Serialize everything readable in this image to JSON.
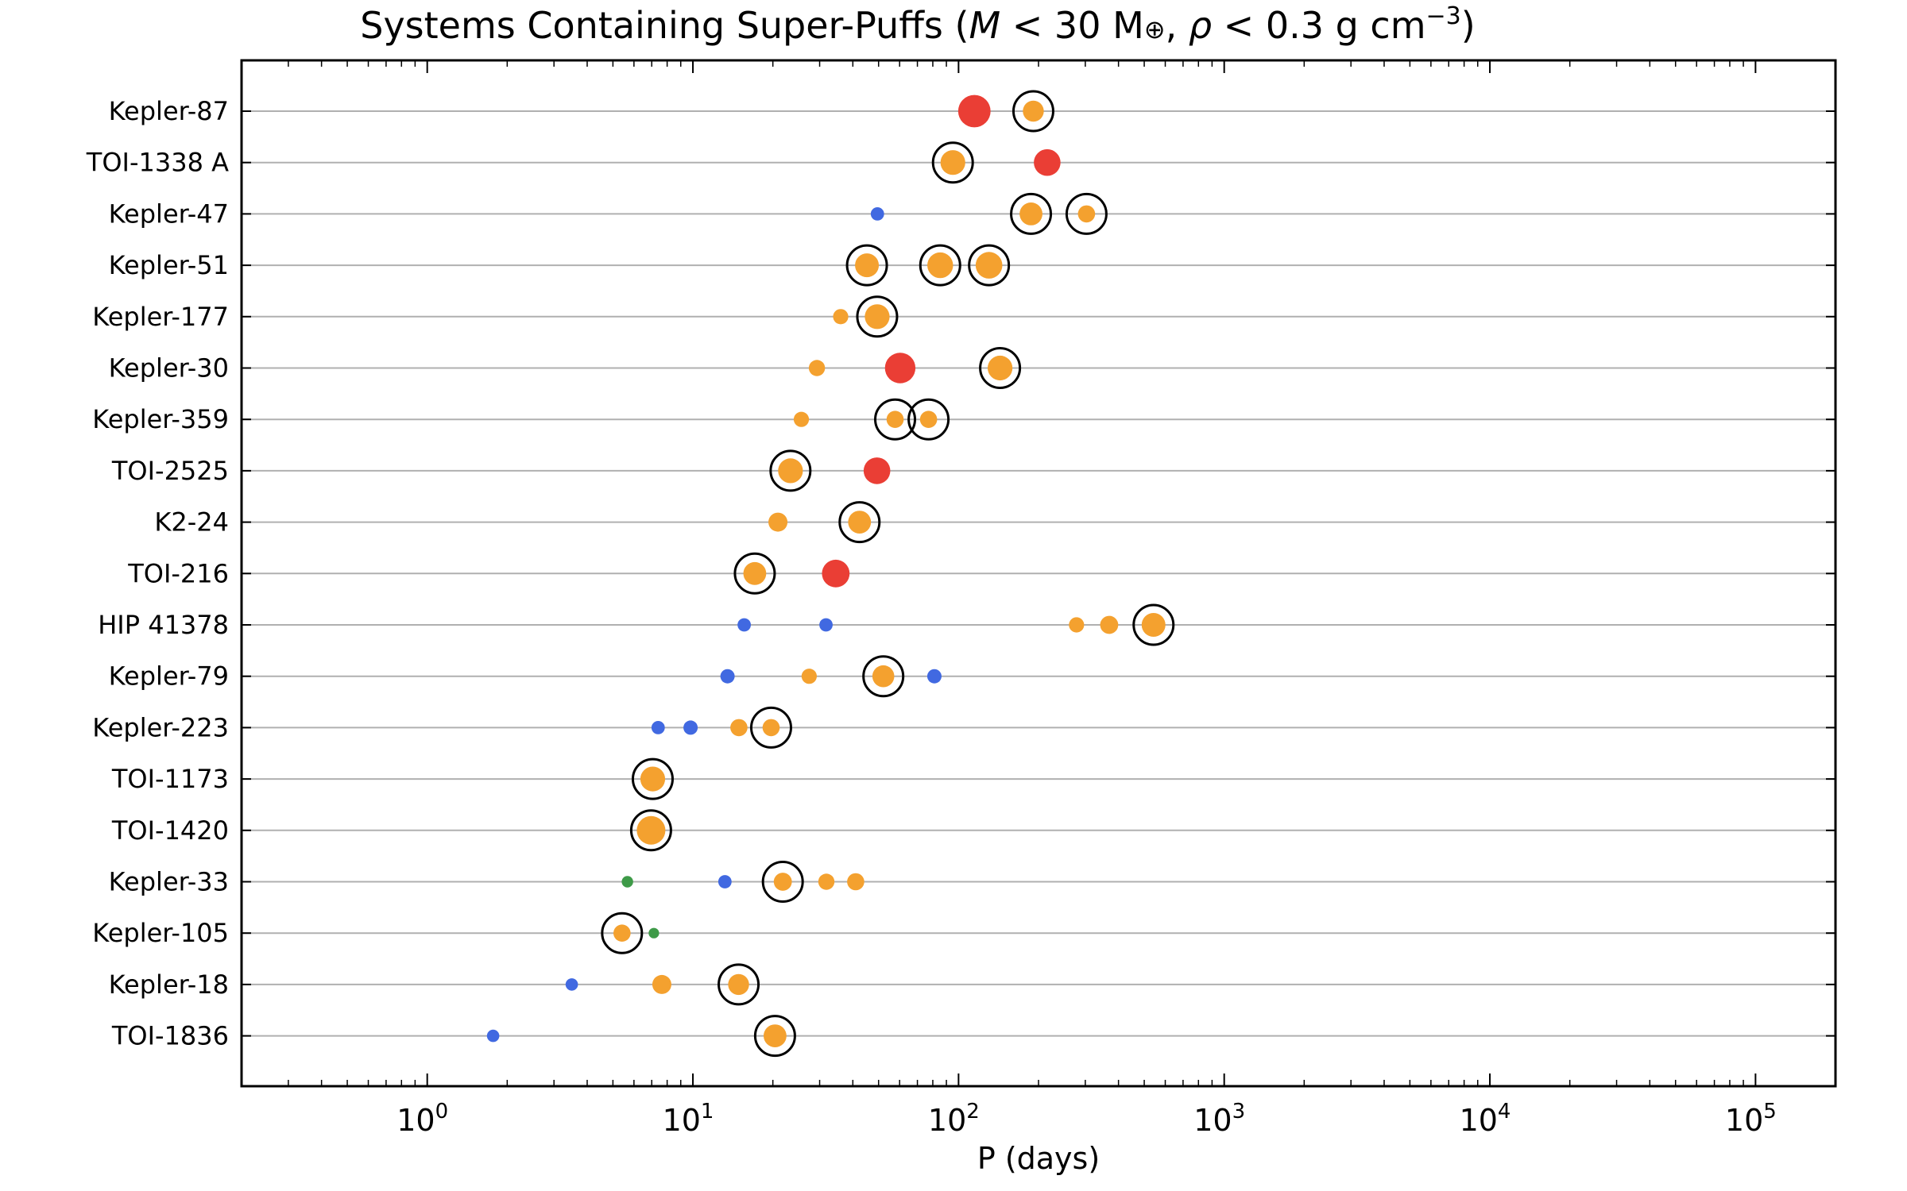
{
  "chart_data": {
    "type": "scatter",
    "title": {
      "prefix": "Systems Containing Super-Puffs (",
      "m_sym": "M",
      "m_cond": " < 30 M",
      "earth_sym": "⊕",
      "sep": ", ",
      "rho_sym": "ρ",
      "rho_cond": " < 0.3 g cm",
      "rho_exp": "−3",
      "suffix": ")"
    },
    "xlabel": "P (days)",
    "ylabel": "",
    "xscale": "log",
    "xlim": [
      0.2,
      200000
    ],
    "xticks": [
      {
        "value": 1,
        "base": "10",
        "exp": "0"
      },
      {
        "value": 10,
        "base": "10",
        "exp": "1"
      },
      {
        "value": 100,
        "base": "10",
        "exp": "2"
      },
      {
        "value": 1000,
        "base": "10",
        "exp": "3"
      },
      {
        "value": 10000,
        "base": "10",
        "exp": "4"
      },
      {
        "value": 100000,
        "base": "10",
        "exp": "5"
      }
    ],
    "grid": "horizontal",
    "colors": {
      "orange": "#f4a12f",
      "red": "#ea3e35",
      "blue": "#4169e1",
      "green": "#3e9a48",
      "ring": "#000000",
      "gridline": "#b0b0b0"
    },
    "systems": [
      {
        "name": "Kepler-87",
        "planets": [
          {
            "P": 114.7,
            "color": "red",
            "size": 3.4
          },
          {
            "P": 191.2,
            "color": "orange",
            "size": 2.2,
            "superpuff": true
          }
        ]
      },
      {
        "name": "TOI-1338 A",
        "planets": [
          {
            "P": 95.2,
            "color": "orange",
            "size": 2.6,
            "superpuff": true
          },
          {
            "P": 215.6,
            "color": "red",
            "size": 2.8
          }
        ]
      },
      {
        "name": "Kepler-47",
        "planets": [
          {
            "P": 49.5,
            "color": "blue",
            "size": 1.4
          },
          {
            "P": 187.4,
            "color": "orange",
            "size": 2.4,
            "superpuff": true
          },
          {
            "P": 303.2,
            "color": "orange",
            "size": 1.8,
            "superpuff": true
          }
        ]
      },
      {
        "name": "Kepler-51",
        "planets": [
          {
            "P": 45.2,
            "color": "orange",
            "size": 2.5,
            "superpuff": true
          },
          {
            "P": 85.3,
            "color": "orange",
            "size": 2.7,
            "superpuff": true
          },
          {
            "P": 130.2,
            "color": "orange",
            "size": 2.8,
            "superpuff": true
          }
        ]
      },
      {
        "name": "Kepler-177",
        "planets": [
          {
            "P": 36.0,
            "color": "orange",
            "size": 1.6
          },
          {
            "P": 49.4,
            "color": "orange",
            "size": 2.6,
            "superpuff": true
          }
        ]
      },
      {
        "name": "Kepler-30",
        "planets": [
          {
            "P": 29.3,
            "color": "orange",
            "size": 1.7
          },
          {
            "P": 60.3,
            "color": "red",
            "size": 3.2
          },
          {
            "P": 143.3,
            "color": "orange",
            "size": 2.6,
            "superpuff": true
          }
        ]
      },
      {
        "name": "Kepler-359",
        "planets": [
          {
            "P": 25.6,
            "color": "orange",
            "size": 1.6
          },
          {
            "P": 57.7,
            "color": "orange",
            "size": 1.8,
            "superpuff": true
          },
          {
            "P": 77.1,
            "color": "orange",
            "size": 1.8,
            "superpuff": true
          }
        ]
      },
      {
        "name": "TOI-2525",
        "planets": [
          {
            "P": 23.3,
            "color": "orange",
            "size": 2.6,
            "superpuff": true
          },
          {
            "P": 49.3,
            "color": "red",
            "size": 2.8
          }
        ]
      },
      {
        "name": "K2-24",
        "planets": [
          {
            "P": 20.9,
            "color": "orange",
            "size": 2.0
          },
          {
            "P": 42.4,
            "color": "orange",
            "size": 2.4,
            "superpuff": true
          }
        ]
      },
      {
        "name": "TOI-216",
        "planets": [
          {
            "P": 17.1,
            "color": "orange",
            "size": 2.4,
            "superpuff": true
          },
          {
            "P": 34.5,
            "color": "red",
            "size": 2.9
          }
        ]
      },
      {
        "name": "HIP 41378",
        "planets": [
          {
            "P": 15.6,
            "color": "blue",
            "size": 1.4
          },
          {
            "P": 31.7,
            "color": "blue",
            "size": 1.4
          },
          {
            "P": 278,
            "color": "orange",
            "size": 1.6
          },
          {
            "P": 369,
            "color": "orange",
            "size": 1.9
          },
          {
            "P": 542,
            "color": "orange",
            "size": 2.5,
            "superpuff": true
          }
        ]
      },
      {
        "name": "Kepler-79",
        "planets": [
          {
            "P": 13.5,
            "color": "blue",
            "size": 1.5
          },
          {
            "P": 27.4,
            "color": "orange",
            "size": 1.6
          },
          {
            "P": 52.1,
            "color": "orange",
            "size": 2.3,
            "superpuff": true
          },
          {
            "P": 81.1,
            "color": "blue",
            "size": 1.5
          }
        ]
      },
      {
        "name": "Kepler-223",
        "planets": [
          {
            "P": 7.4,
            "color": "blue",
            "size": 1.4
          },
          {
            "P": 9.8,
            "color": "blue",
            "size": 1.5
          },
          {
            "P": 14.9,
            "color": "orange",
            "size": 1.8
          },
          {
            "P": 19.7,
            "color": "orange",
            "size": 1.8,
            "superpuff": true
          }
        ]
      },
      {
        "name": "TOI-1173",
        "planets": [
          {
            "P": 7.06,
            "color": "orange",
            "size": 2.6,
            "superpuff": true
          }
        ]
      },
      {
        "name": "TOI-1420",
        "planets": [
          {
            "P": 6.96,
            "color": "orange",
            "size": 3.0,
            "superpuff": true
          }
        ]
      },
      {
        "name": "Kepler-33",
        "planets": [
          {
            "P": 5.67,
            "color": "green",
            "size": 1.2
          },
          {
            "P": 13.2,
            "color": "blue",
            "size": 1.4
          },
          {
            "P": 21.8,
            "color": "orange",
            "size": 1.9,
            "superpuff": true
          },
          {
            "P": 31.8,
            "color": "orange",
            "size": 1.7
          },
          {
            "P": 41.0,
            "color": "orange",
            "size": 1.8
          }
        ]
      },
      {
        "name": "Kepler-105",
        "planets": [
          {
            "P": 5.41,
            "color": "orange",
            "size": 1.8,
            "superpuff": true
          },
          {
            "P": 7.13,
            "color": "green",
            "size": 1.1
          }
        ]
      },
      {
        "name": "Kepler-18",
        "planets": [
          {
            "P": 3.5,
            "color": "blue",
            "size": 1.3
          },
          {
            "P": 7.64,
            "color": "orange",
            "size": 2.0
          },
          {
            "P": 14.86,
            "color": "orange",
            "size": 2.2,
            "superpuff": true
          }
        ]
      },
      {
        "name": "TOI-1836",
        "planets": [
          {
            "P": 1.77,
            "color": "blue",
            "size": 1.3
          },
          {
            "P": 20.38,
            "color": "orange",
            "size": 2.4,
            "superpuff": true
          }
        ]
      }
    ]
  }
}
